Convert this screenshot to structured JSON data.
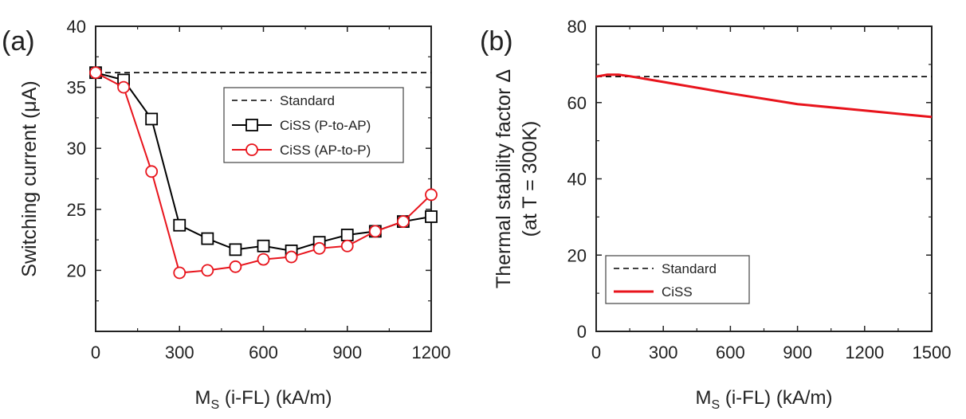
{
  "chart_data": [
    {
      "type": "line",
      "panel_label": "(a)",
      "title": "",
      "xlabel": "M",
      "xlabel_sub": "S",
      "xlabel_rest": " (i-FL) (kA/m)",
      "ylabel": "Switching current (μA)",
      "xlim": [
        0,
        1200
      ],
      "ylim": [
        15,
        40
      ],
      "xticks": [
        0,
        300,
        600,
        900,
        1200
      ],
      "yticks": [
        20,
        25,
        30,
        35,
        40
      ],
      "grid": false,
      "legend_position": "upper-right",
      "colors": {
        "standard": "#000000",
        "p_to_ap": "#000000",
        "ap_to_p": "#e8141c"
      },
      "series": [
        {
          "name": "Standard",
          "style": "dashed",
          "marker": "none",
          "x": [
            0,
            1200
          ],
          "y": [
            36.2,
            36.2
          ]
        },
        {
          "name": "CiSS (P-to-AP)",
          "style": "solid",
          "marker": "square",
          "x": [
            0,
            100,
            200,
            300,
            400,
            500,
            600,
            700,
            800,
            900,
            1000,
            1100,
            1200
          ],
          "y": [
            36.2,
            35.6,
            32.4,
            23.7,
            22.6,
            21.7,
            22.0,
            21.6,
            22.3,
            22.9,
            23.2,
            24.0,
            24.4
          ]
        },
        {
          "name": "CiSS (AP-to-P)",
          "style": "solid",
          "marker": "circle",
          "x": [
            0,
            100,
            200,
            300,
            400,
            500,
            600,
            700,
            800,
            900,
            1000,
            1100,
            1200
          ],
          "y": [
            36.2,
            35.0,
            28.1,
            19.8,
            20.0,
            20.3,
            20.9,
            21.1,
            21.8,
            22.0,
            23.2,
            24.0,
            26.2
          ]
        }
      ]
    },
    {
      "type": "line",
      "panel_label": "(b)",
      "title": "",
      "xlabel": "M",
      "xlabel_sub": "S",
      "xlabel_rest": " (i-FL) (kA/m)",
      "ylabel": "Thermal stability factor Δ",
      "ylabel2": "(at T = 300K)",
      "xlim": [
        0,
        1500
      ],
      "ylim": [
        0,
        80
      ],
      "xticks": [
        0,
        300,
        600,
        900,
        1200,
        1500
      ],
      "yticks": [
        0,
        20,
        40,
        60,
        80
      ],
      "grid": false,
      "legend_position": "lower-left",
      "colors": {
        "standard": "#000000",
        "ciss": "#e8141c"
      },
      "series": [
        {
          "name": "Standard",
          "style": "dashed",
          "marker": "none",
          "x": [
            0,
            1500
          ],
          "y": [
            66.8,
            66.8
          ]
        },
        {
          "name": "CiSS",
          "style": "solid",
          "marker": "none",
          "x": [
            0,
            50,
            100,
            150,
            300,
            600,
            900,
            1200,
            1500
          ],
          "y": [
            66.8,
            67.3,
            67.3,
            66.9,
            65.4,
            62.4,
            59.6,
            57.9,
            56.2
          ]
        }
      ]
    }
  ]
}
